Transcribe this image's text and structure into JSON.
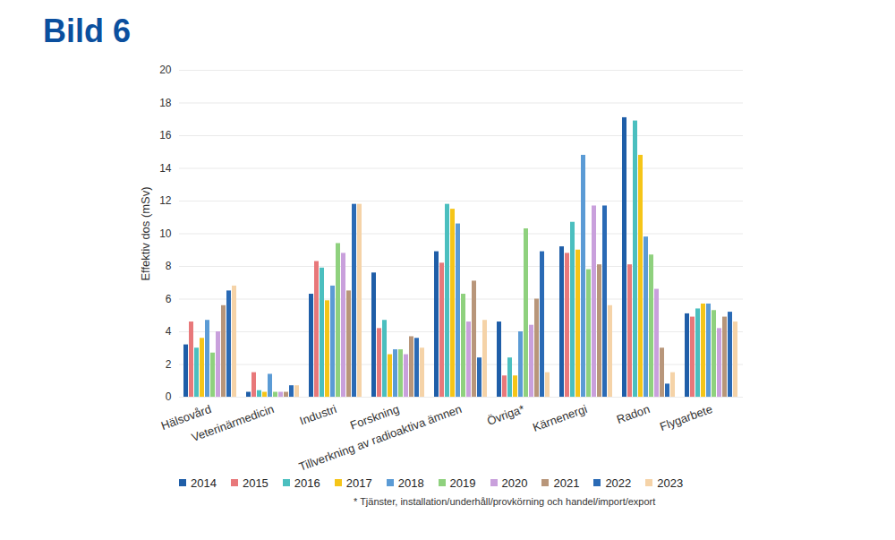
{
  "chart_data": {
    "type": "bar",
    "title": "Bild 6",
    "ylabel": "Effektiv dos (mSv)",
    "categories": [
      "Hälsovård",
      "Veterinärmedicin",
      "Industri",
      "Forskning",
      "Tillverkning av radioaktiva ämnen",
      "Övriga*",
      "Kärnenergi",
      "Radon",
      "Flygarbete"
    ],
    "series": [
      {
        "name": "2014",
        "color": "#1f5ea8",
        "values": [
          3.2,
          0.3,
          6.3,
          7.6,
          8.9,
          4.6,
          9.2,
          17.1,
          5.1
        ]
      },
      {
        "name": "2015",
        "color": "#e8787a",
        "values": [
          4.6,
          1.5,
          8.3,
          4.2,
          8.2,
          1.3,
          8.8,
          8.1,
          4.9
        ]
      },
      {
        "name": "2016",
        "color": "#4bbfbf",
        "values": [
          3.0,
          0.4,
          7.9,
          4.7,
          11.8,
          2.4,
          10.7,
          16.9,
          5.4
        ]
      },
      {
        "name": "2017",
        "color": "#f5c518",
        "values": [
          3.6,
          0.3,
          5.9,
          2.6,
          11.5,
          1.3,
          9.0,
          14.8,
          5.7
        ]
      },
      {
        "name": "2018",
        "color": "#5b9bd5",
        "values": [
          4.7,
          1.4,
          6.8,
          2.9,
          10.6,
          4.0,
          14.8,
          9.8,
          5.7
        ]
      },
      {
        "name": "2019",
        "color": "#8fd17e",
        "values": [
          2.7,
          0.3,
          9.4,
          2.9,
          6.3,
          10.3,
          7.8,
          8.7,
          5.3
        ]
      },
      {
        "name": "2020",
        "color": "#c9a0dc",
        "values": [
          4.0,
          0.3,
          8.8,
          2.6,
          4.6,
          4.4,
          11.7,
          6.6,
          4.2
        ]
      },
      {
        "name": "2021",
        "color": "#b8967a",
        "values": [
          5.6,
          0.3,
          6.5,
          3.7,
          7.1,
          6.0,
          8.1,
          3.0,
          4.9
        ]
      },
      {
        "name": "2022",
        "color": "#2a6ab5",
        "values": [
          6.5,
          0.7,
          11.8,
          3.6,
          2.4,
          8.9,
          11.7,
          0.8,
          5.2
        ]
      },
      {
        "name": "2023",
        "color": "#f5d3a8",
        "values": [
          6.8,
          0.7,
          11.8,
          3.0,
          4.7,
          1.5,
          5.6,
          1.5,
          4.6
        ]
      }
    ],
    "ylim": [
      0,
      20
    ],
    "yticks": [
      0,
      2,
      4,
      6,
      8,
      10,
      12,
      14,
      16,
      18,
      20
    ],
    "grid": true,
    "legend": "bottom",
    "annotations": [
      "* Tjänster, installation/underhåll/provkörning och handel/import/export"
    ]
  }
}
